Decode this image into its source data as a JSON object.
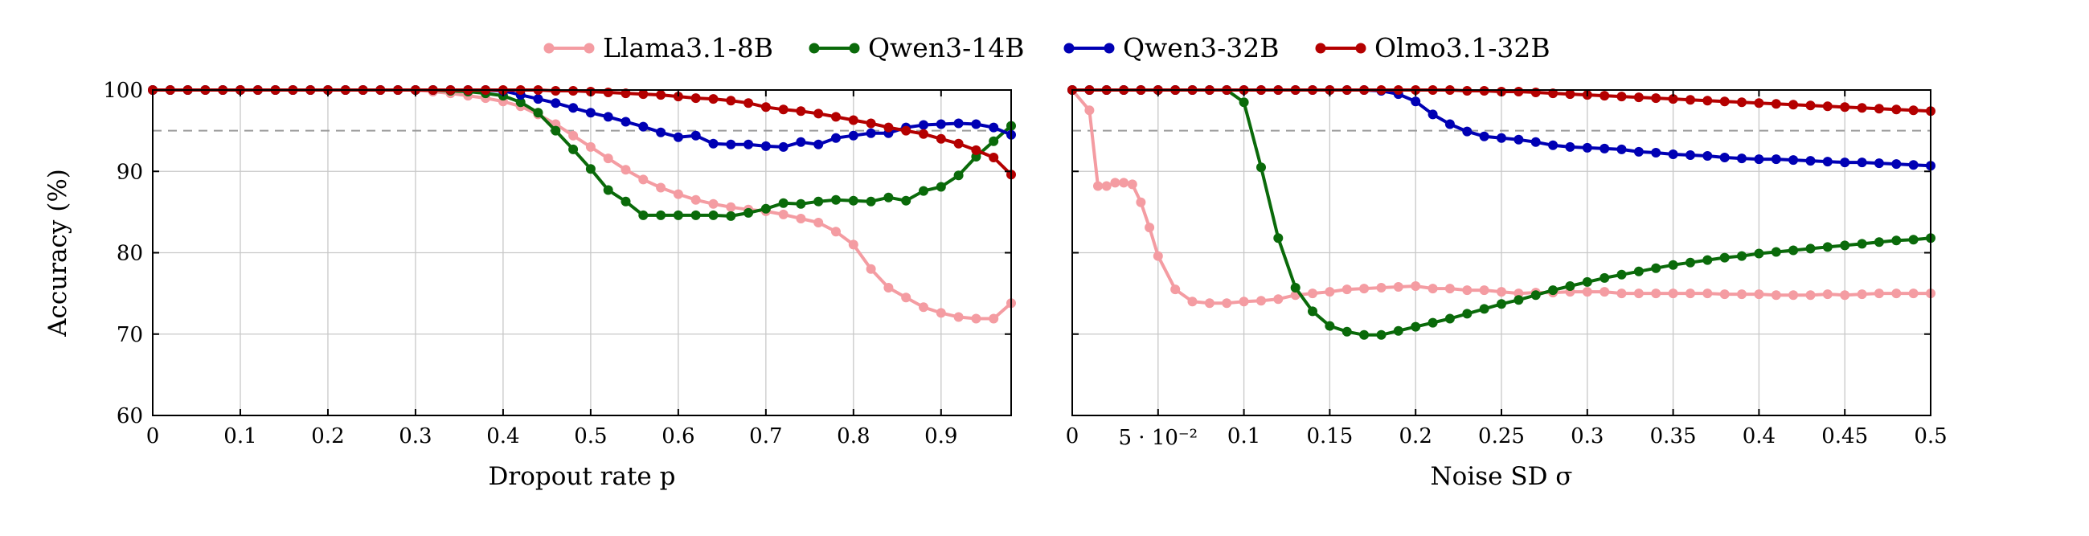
{
  "legend": {
    "placement": "top-center",
    "entries": [
      {
        "name": "Llama3.1-8B",
        "color": "#f49ca2"
      },
      {
        "name": "Qwen3-14B",
        "color": "#0a6a0a"
      },
      {
        "name": "Qwen3-32B",
        "color": "#0000b4"
      },
      {
        "name": "Olmo3.1-32B",
        "color": "#b40000"
      }
    ]
  },
  "colors": {
    "grid": "#c8c8c8",
    "reference_line": "#9a9a9a",
    "axis": "#000000"
  },
  "chart_data": [
    {
      "type": "line",
      "xlabel": "Dropout rate p",
      "ylabel": "Accuracy (%)",
      "xlim": [
        0,
        0.98
      ],
      "ylim": [
        60,
        100
      ],
      "x_ticks": [
        {
          "value": 0,
          "label": "0"
        },
        {
          "value": 0.1,
          "label": "0.1"
        },
        {
          "value": 0.2,
          "label": "0.2"
        },
        {
          "value": 0.3,
          "label": "0.3"
        },
        {
          "value": 0.4,
          "label": "0.4"
        },
        {
          "value": 0.5,
          "label": "0.5"
        },
        {
          "value": 0.6,
          "label": "0.6"
        },
        {
          "value": 0.7,
          "label": "0.7"
        },
        {
          "value": 0.8,
          "label": "0.8"
        },
        {
          "value": 0.9,
          "label": "0.9"
        }
      ],
      "y_ticks": [
        {
          "value": 60,
          "label": "60"
        },
        {
          "value": 70,
          "label": "70"
        },
        {
          "value": 80,
          "label": "80"
        },
        {
          "value": 90,
          "label": "90"
        },
        {
          "value": 100,
          "label": "100"
        }
      ],
      "grid": true,
      "reference_line": {
        "axis": "y",
        "value": 95,
        "style": "dashed"
      },
      "series": [
        {
          "name": "Llama3.1-8B",
          "color": "#f49ca2",
          "x": [
            0,
            0.02,
            0.04,
            0.06,
            0.08,
            0.1,
            0.12,
            0.14,
            0.16,
            0.18,
            0.2,
            0.22,
            0.24,
            0.26,
            0.28,
            0.3,
            0.32,
            0.34,
            0.36,
            0.38,
            0.4,
            0.42,
            0.44,
            0.46,
            0.48,
            0.5,
            0.52,
            0.54,
            0.56,
            0.58,
            0.6,
            0.62,
            0.64,
            0.66,
            0.68,
            0.7,
            0.72,
            0.74,
            0.76,
            0.78,
            0.8,
            0.82,
            0.84,
            0.86,
            0.88,
            0.9,
            0.92,
            0.94,
            0.96,
            0.98
          ],
          "y": [
            100,
            100,
            100,
            100,
            100,
            100,
            100,
            100,
            100,
            100,
            100,
            100,
            100,
            100,
            100,
            100,
            99.8,
            99.6,
            99.3,
            99,
            98.6,
            98,
            97,
            95.8,
            94.4,
            93,
            91.6,
            90.2,
            89,
            88,
            87.2,
            86.5,
            86,
            85.6,
            85.3,
            85.1,
            84.7,
            84.2,
            83.7,
            82.6,
            81,
            78,
            75.7,
            74.5,
            73.3,
            72.6,
            72.1,
            71.9,
            71.9,
            73.8
          ]
        },
        {
          "name": "Qwen3-14B",
          "color": "#0a6a0a",
          "x": [
            0,
            0.02,
            0.04,
            0.06,
            0.08,
            0.1,
            0.12,
            0.14,
            0.16,
            0.18,
            0.2,
            0.22,
            0.24,
            0.26,
            0.28,
            0.3,
            0.32,
            0.34,
            0.36,
            0.38,
            0.4,
            0.42,
            0.44,
            0.46,
            0.48,
            0.5,
            0.52,
            0.54,
            0.56,
            0.58,
            0.6,
            0.62,
            0.64,
            0.66,
            0.68,
            0.7,
            0.72,
            0.74,
            0.76,
            0.78,
            0.8,
            0.82,
            0.84,
            0.86,
            0.88,
            0.9,
            0.92,
            0.94,
            0.96,
            0.98
          ],
          "y": [
            100,
            100,
            100,
            100,
            100,
            100,
            100,
            100,
            100,
            100,
            100,
            100,
            100,
            100,
            100,
            100,
            100,
            99.9,
            99.8,
            99.6,
            99.3,
            98.5,
            97.2,
            95,
            92.7,
            90.3,
            87.7,
            86.3,
            84.6,
            84.6,
            84.6,
            84.6,
            84.6,
            84.5,
            84.9,
            85.4,
            86.1,
            86,
            86.3,
            86.5,
            86.4,
            86.3,
            86.8,
            86.4,
            87.6,
            88.1,
            89.5,
            91.8,
            93.7,
            95.6
          ]
        },
        {
          "name": "Qwen3-32B",
          "color": "#0000b4",
          "x": [
            0,
            0.02,
            0.04,
            0.06,
            0.08,
            0.1,
            0.12,
            0.14,
            0.16,
            0.18,
            0.2,
            0.22,
            0.24,
            0.26,
            0.28,
            0.3,
            0.32,
            0.34,
            0.36,
            0.38,
            0.4,
            0.42,
            0.44,
            0.46,
            0.48,
            0.5,
            0.52,
            0.54,
            0.56,
            0.58,
            0.6,
            0.62,
            0.64,
            0.66,
            0.68,
            0.7,
            0.72,
            0.74,
            0.76,
            0.78,
            0.8,
            0.82,
            0.84,
            0.86,
            0.88,
            0.9,
            0.92,
            0.94,
            0.96,
            0.98
          ],
          "y": [
            100,
            100,
            100,
            100,
            100,
            100,
            100,
            100,
            100,
            100,
            100,
            100,
            100,
            100,
            100,
            100,
            100,
            100,
            100,
            100,
            99.9,
            99.4,
            98.9,
            98.4,
            97.8,
            97.2,
            96.7,
            96.1,
            95.5,
            94.8,
            94.2,
            94.4,
            93.4,
            93.3,
            93.3,
            93.1,
            93,
            93.6,
            93.3,
            94.1,
            94.4,
            94.7,
            94.7,
            95.4,
            95.7,
            95.8,
            95.9,
            95.8,
            95.4,
            94.5
          ]
        },
        {
          "name": "Olmo3.1-32B",
          "color": "#b40000",
          "x": [
            0,
            0.02,
            0.04,
            0.06,
            0.08,
            0.1,
            0.12,
            0.14,
            0.16,
            0.18,
            0.2,
            0.22,
            0.24,
            0.26,
            0.28,
            0.3,
            0.32,
            0.34,
            0.36,
            0.38,
            0.4,
            0.42,
            0.44,
            0.46,
            0.48,
            0.5,
            0.52,
            0.54,
            0.56,
            0.58,
            0.6,
            0.62,
            0.64,
            0.66,
            0.68,
            0.7,
            0.72,
            0.74,
            0.76,
            0.78,
            0.8,
            0.82,
            0.84,
            0.86,
            0.88,
            0.9,
            0.92,
            0.94,
            0.96,
            0.98
          ],
          "y": [
            100,
            100,
            100,
            100,
            100,
            100,
            100,
            100,
            100,
            100,
            100,
            100,
            100,
            100,
            100,
            100,
            100,
            100,
            100,
            100,
            100,
            100,
            100,
            99.9,
            99.9,
            99.8,
            99.7,
            99.6,
            99.5,
            99.4,
            99.2,
            99,
            98.9,
            98.7,
            98.4,
            97.9,
            97.6,
            97.4,
            97.1,
            96.7,
            96.3,
            95.9,
            95.4,
            95,
            94.6,
            94,
            93.4,
            92.6,
            91.7,
            89.6
          ]
        }
      ]
    },
    {
      "type": "line",
      "xlabel": "Noise SD σ",
      "ylabel": "",
      "xlim": [
        0,
        0.5
      ],
      "ylim": [
        60,
        100
      ],
      "x_ticks": [
        {
          "value": 0,
          "label": "0"
        },
        {
          "value": 0.05,
          "label": "5 · 10⁻²"
        },
        {
          "value": 0.1,
          "label": "0.1"
        },
        {
          "value": 0.15,
          "label": "0.15"
        },
        {
          "value": 0.2,
          "label": "0.2"
        },
        {
          "value": 0.25,
          "label": "0.25"
        },
        {
          "value": 0.3,
          "label": "0.3"
        },
        {
          "value": 0.35,
          "label": "0.35"
        },
        {
          "value": 0.4,
          "label": "0.4"
        },
        {
          "value": 0.45,
          "label": "0.45"
        },
        {
          "value": 0.5,
          "label": "0.5"
        }
      ],
      "y_ticks": [
        {
          "value": 70
        },
        {
          "value": 80
        },
        {
          "value": 90
        },
        {
          "value": 100
        }
      ],
      "grid": true,
      "reference_line": {
        "axis": "y",
        "value": 95,
        "style": "dashed"
      },
      "series": [
        {
          "name": "Llama3.1-8B",
          "color": "#f49ca2",
          "x": [
            0,
            0.01,
            0.015,
            0.02,
            0.025,
            0.03,
            0.035,
            0.04,
            0.045,
            0.05,
            0.06,
            0.07,
            0.08,
            0.09,
            0.1,
            0.11,
            0.12,
            0.13,
            0.14,
            0.15,
            0.16,
            0.17,
            0.18,
            0.19,
            0.2,
            0.21,
            0.22,
            0.23,
            0.24,
            0.25,
            0.26,
            0.27,
            0.28,
            0.29,
            0.3,
            0.31,
            0.32,
            0.33,
            0.34,
            0.35,
            0.36,
            0.37,
            0.38,
            0.39,
            0.4,
            0.41,
            0.42,
            0.43,
            0.44,
            0.45,
            0.46,
            0.47,
            0.48,
            0.49,
            0.5
          ],
          "y": [
            100,
            97.5,
            88.2,
            88.2,
            88.6,
            88.6,
            88.4,
            86.2,
            83.1,
            79.6,
            75.5,
            74,
            73.8,
            73.8,
            74,
            74.1,
            74.3,
            74.8,
            75,
            75.2,
            75.5,
            75.6,
            75.7,
            75.8,
            75.9,
            75.6,
            75.6,
            75.4,
            75.4,
            75.2,
            75,
            75.1,
            75.1,
            75.2,
            75.2,
            75.2,
            75,
            75,
            75,
            75,
            75,
            75,
            74.9,
            74.9,
            74.9,
            74.8,
            74.8,
            74.8,
            74.9,
            74.8,
            74.9,
            75,
            75,
            75,
            75
          ]
        },
        {
          "name": "Qwen3-14B",
          "color": "#0a6a0a",
          "x": [
            0,
            0.01,
            0.02,
            0.03,
            0.04,
            0.05,
            0.06,
            0.07,
            0.08,
            0.09,
            0.1,
            0.11,
            0.12,
            0.13,
            0.14,
            0.15,
            0.16,
            0.17,
            0.18,
            0.19,
            0.2,
            0.21,
            0.22,
            0.23,
            0.24,
            0.25,
            0.26,
            0.27,
            0.28,
            0.29,
            0.3,
            0.31,
            0.32,
            0.33,
            0.34,
            0.35,
            0.36,
            0.37,
            0.38,
            0.39,
            0.4,
            0.41,
            0.42,
            0.43,
            0.44,
            0.45,
            0.46,
            0.47,
            0.48,
            0.49,
            0.5
          ],
          "y": [
            100,
            100,
            100,
            100,
            100,
            100,
            100,
            100,
            100,
            100,
            98.5,
            90.5,
            81.8,
            75.7,
            72.8,
            71,
            70.3,
            69.9,
            69.9,
            70.4,
            70.9,
            71.4,
            71.9,
            72.5,
            73.1,
            73.7,
            74.2,
            74.8,
            75.4,
            75.9,
            76.4,
            76.9,
            77.3,
            77.7,
            78.1,
            78.5,
            78.8,
            79.1,
            79.4,
            79.6,
            79.9,
            80.1,
            80.3,
            80.5,
            80.7,
            80.9,
            81.1,
            81.3,
            81.5,
            81.6,
            81.8
          ]
        },
        {
          "name": "Qwen3-32B",
          "color": "#0000b4",
          "x": [
            0,
            0.01,
            0.02,
            0.03,
            0.04,
            0.05,
            0.06,
            0.07,
            0.08,
            0.09,
            0.1,
            0.11,
            0.12,
            0.13,
            0.14,
            0.15,
            0.16,
            0.17,
            0.18,
            0.19,
            0.2,
            0.21,
            0.22,
            0.23,
            0.24,
            0.25,
            0.26,
            0.27,
            0.28,
            0.29,
            0.3,
            0.31,
            0.32,
            0.33,
            0.34,
            0.35,
            0.36,
            0.37,
            0.38,
            0.39,
            0.4,
            0.41,
            0.42,
            0.43,
            0.44,
            0.45,
            0.46,
            0.47,
            0.48,
            0.49,
            0.5
          ],
          "y": [
            100,
            100,
            100,
            100,
            100,
            100,
            100,
            100,
            100,
            100,
            100,
            100,
            100,
            100,
            100,
            100,
            100,
            100,
            99.9,
            99.5,
            98.6,
            97,
            95.8,
            94.9,
            94.3,
            94.1,
            93.9,
            93.6,
            93.2,
            93,
            92.9,
            92.8,
            92.7,
            92.4,
            92.3,
            92.1,
            92,
            91.9,
            91.7,
            91.6,
            91.5,
            91.5,
            91.4,
            91.3,
            91.2,
            91.1,
            91.1,
            91,
            90.9,
            90.8,
            90.7
          ]
        },
        {
          "name": "Olmo3.1-32B",
          "color": "#b40000",
          "x": [
            0,
            0.01,
            0.02,
            0.03,
            0.04,
            0.05,
            0.06,
            0.07,
            0.08,
            0.09,
            0.1,
            0.11,
            0.12,
            0.13,
            0.14,
            0.15,
            0.16,
            0.17,
            0.18,
            0.19,
            0.2,
            0.21,
            0.22,
            0.23,
            0.24,
            0.25,
            0.26,
            0.27,
            0.28,
            0.29,
            0.3,
            0.31,
            0.32,
            0.33,
            0.34,
            0.35,
            0.36,
            0.37,
            0.38,
            0.39,
            0.4,
            0.41,
            0.42,
            0.43,
            0.44,
            0.45,
            0.46,
            0.47,
            0.48,
            0.49,
            0.5
          ],
          "y": [
            100,
            100,
            100,
            100,
            100,
            100,
            100,
            100,
            100,
            100,
            100,
            100,
            100,
            100,
            100,
            100,
            100,
            100,
            100,
            100,
            100,
            100,
            100,
            99.9,
            99.9,
            99.8,
            99.8,
            99.7,
            99.6,
            99.5,
            99.4,
            99.3,
            99.2,
            99.1,
            99,
            98.9,
            98.8,
            98.7,
            98.6,
            98.5,
            98.4,
            98.3,
            98.2,
            98.1,
            98,
            97.9,
            97.8,
            97.7,
            97.6,
            97.5,
            97.4
          ]
        }
      ]
    }
  ]
}
